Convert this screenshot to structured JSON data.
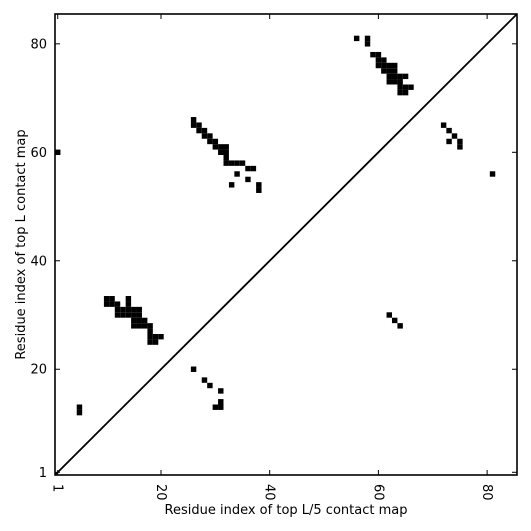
{
  "chart_data": {
    "type": "heatmap",
    "title": "",
    "xlabel": "Residue index of top L/5 contact map",
    "ylabel": "Residue index of top L contact map",
    "xlim": [
      0.5,
      85.5
    ],
    "ylim": [
      0.5,
      85.5
    ],
    "x_ticks": [
      1,
      20,
      40,
      60,
      80
    ],
    "y_ticks": [
      1,
      20,
      40,
      60,
      80
    ],
    "x_tick_labels": [
      "1",
      "20",
      "40",
      "60",
      "80"
    ],
    "y_tick_labels": [
      "1",
      "20",
      "40",
      "60",
      "80"
    ],
    "x_tick_rotation": -90,
    "grid": false,
    "legend": "none",
    "cell_color": "#000000",
    "diagonal_color": "#000000",
    "upper_contacts": [
      [
        1,
        60
      ],
      [
        26,
        66
      ],
      [
        26,
        65
      ],
      [
        27,
        65
      ],
      [
        27,
        64
      ],
      [
        28,
        64
      ],
      [
        28,
        63
      ],
      [
        29,
        63
      ],
      [
        29,
        62
      ],
      [
        30,
        62
      ],
      [
        30,
        61
      ],
      [
        31,
        61
      ],
      [
        31,
        60
      ],
      [
        32,
        61
      ],
      [
        32,
        60
      ],
      [
        32,
        59
      ],
      [
        32,
        58
      ],
      [
        33,
        58
      ],
      [
        34,
        58
      ],
      [
        35,
        58
      ],
      [
        33,
        54
      ],
      [
        34,
        56
      ],
      [
        36,
        57
      ],
      [
        37,
        57
      ],
      [
        36,
        55
      ],
      [
        38,
        54
      ],
      [
        38,
        53
      ],
      [
        56,
        81
      ],
      [
        58,
        81
      ],
      [
        58,
        80
      ],
      [
        59,
        78
      ],
      [
        60,
        78
      ],
      [
        60,
        77
      ],
      [
        61,
        77
      ],
      [
        61,
        76
      ],
      [
        62,
        76
      ],
      [
        62,
        75
      ],
      [
        63,
        76
      ],
      [
        63,
        75
      ],
      [
        63,
        74
      ],
      [
        64,
        74
      ],
      [
        64,
        73
      ],
      [
        65,
        74
      ],
      [
        64,
        72
      ],
      [
        64,
        71
      ],
      [
        65,
        72
      ],
      [
        65,
        71
      ],
      [
        66,
        72
      ],
      [
        62,
        74
      ],
      [
        63,
        73
      ],
      [
        62,
        73
      ],
      [
        61,
        75
      ],
      [
        60,
        76
      ],
      [
        72,
        65
      ],
      [
        73,
        64
      ],
      [
        74,
        63
      ],
      [
        75,
        62
      ],
      [
        75,
        61
      ],
      [
        73,
        62
      ],
      [
        81,
        56
      ]
    ],
    "lower_contacts": [
      [
        5,
        13
      ],
      [
        5,
        12
      ],
      [
        10,
        33
      ],
      [
        11,
        33
      ],
      [
        10,
        32
      ],
      [
        11,
        32
      ],
      [
        12,
        32
      ],
      [
        12,
        31
      ],
      [
        13,
        31
      ],
      [
        13,
        30
      ],
      [
        12,
        30
      ],
      [
        14,
        33
      ],
      [
        14,
        32
      ],
      [
        14,
        31
      ],
      [
        14,
        30
      ],
      [
        15,
        31
      ],
      [
        15,
        30
      ],
      [
        15,
        29
      ],
      [
        16,
        31
      ],
      [
        16,
        30
      ],
      [
        16,
        29
      ],
      [
        16,
        28
      ],
      [
        15,
        28
      ],
      [
        17,
        29
      ],
      [
        17,
        28
      ],
      [
        18,
        28
      ],
      [
        18,
        27
      ],
      [
        18,
        26
      ],
      [
        18,
        25
      ],
      [
        19,
        26
      ],
      [
        19,
        25
      ],
      [
        20,
        26
      ],
      [
        26,
        20
      ],
      [
        28,
        18
      ],
      [
        29,
        17
      ],
      [
        31,
        16
      ],
      [
        30,
        13
      ],
      [
        31,
        13
      ],
      [
        31,
        14
      ],
      [
        62,
        30
      ],
      [
        63,
        29
      ],
      [
        64,
        28
      ]
    ]
  }
}
